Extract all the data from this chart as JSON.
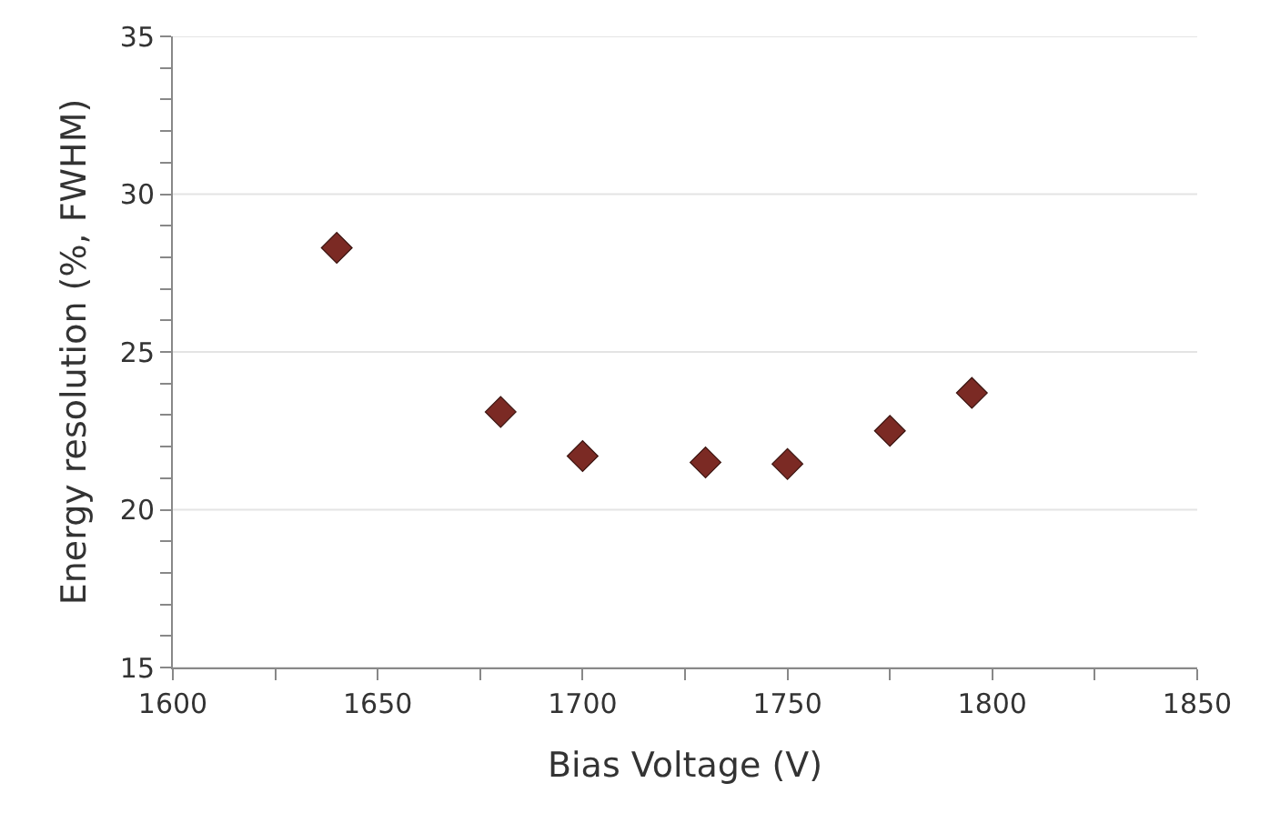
{
  "chart_data": {
    "type": "scatter",
    "xlabel": "Bias Voltage (V)",
    "ylabel": "Energy resolution (%, FWHM)",
    "x": [
      1640,
      1680,
      1700,
      1730,
      1750,
      1775,
      1795
    ],
    "values": [
      28.3,
      23.1,
      21.7,
      21.5,
      21.45,
      22.5,
      23.7
    ],
    "color": "#7b2a24",
    "marker": "diamond",
    "grid": "y",
    "xlim": [
      1600,
      1850
    ],
    "xticks": [
      1600,
      {
        "value": 1625,
        "label": null
      },
      1650,
      {
        "value": 1675,
        "label": null
      },
      1700,
      {
        "value": 1725,
        "label": null
      },
      1750,
      {
        "value": 1775,
        "label": null
      },
      1800,
      {
        "value": 1825,
        "label": null
      },
      1850
    ],
    "ylim": [
      15,
      35
    ],
    "yticks": [
      15,
      {
        "value": 16,
        "label": null
      },
      {
        "value": 17,
        "label": null
      },
      {
        "value": 18,
        "label": null
      },
      {
        "value": 19,
        "label": null
      },
      20,
      {
        "value": 21,
        "label": null
      },
      {
        "value": 22,
        "label": null
      },
      {
        "value": 23,
        "label": null
      },
      {
        "value": 24,
        "label": null
      },
      25,
      {
        "value": 26,
        "label": null
      },
      {
        "value": 27,
        "label": null
      },
      {
        "value": 28,
        "label": null
      },
      {
        "value": 29,
        "label": null
      },
      30,
      {
        "value": 31,
        "label": null
      },
      {
        "value": 32,
        "label": null
      },
      {
        "value": 33,
        "label": null
      },
      {
        "value": 34,
        "label": null
      },
      35
    ]
  }
}
